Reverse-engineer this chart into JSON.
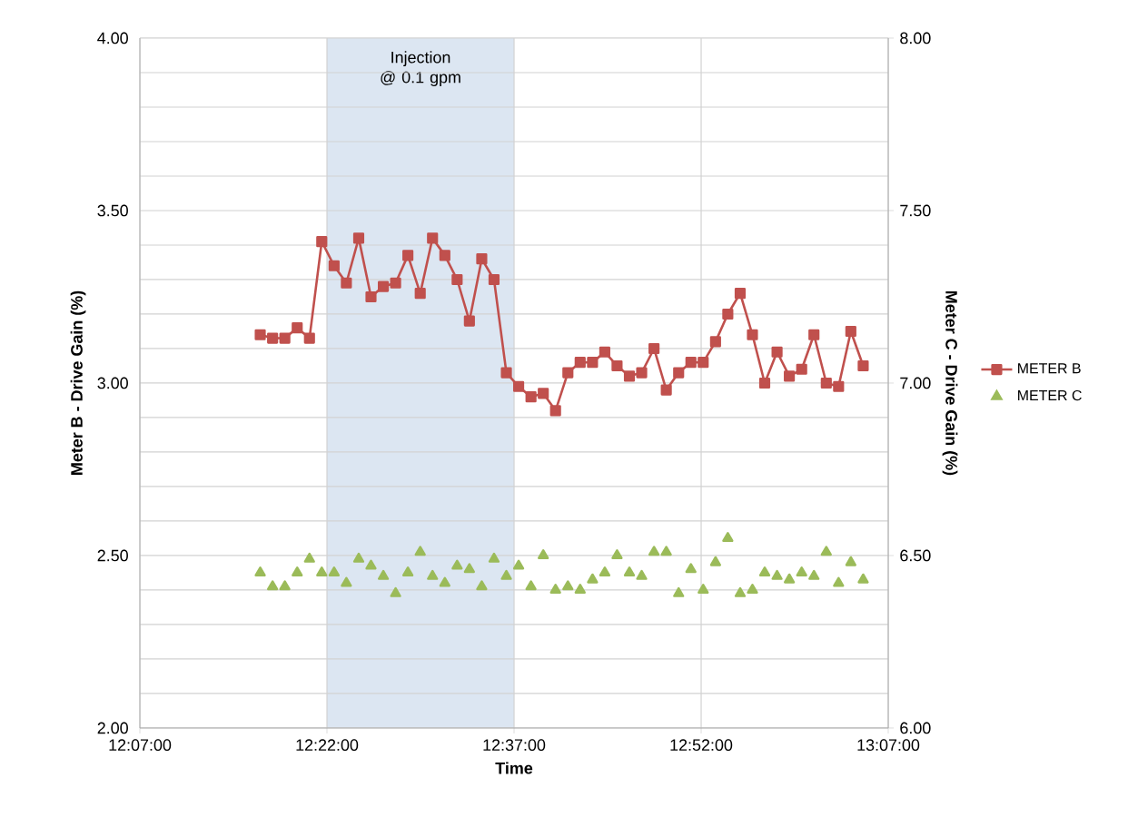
{
  "chart_data": {
    "type": "line",
    "xlabel": "Time",
    "ylabel": "Meter B - Drive Gain (%)",
    "y2label": "Meter C - Drive Gain (%)",
    "x": [
      12.2775,
      12.294,
      12.3104,
      12.3269,
      12.3433,
      12.3597,
      12.3762,
      12.3926,
      12.4091,
      12.4255,
      12.442,
      12.4584,
      12.4748,
      12.4913,
      12.5077,
      12.5242,
      12.5406,
      12.557,
      12.5735,
      12.5899,
      12.6064,
      12.6228,
      12.6393,
      12.6557,
      12.6721,
      12.6886,
      12.705,
      12.7215,
      12.7379,
      12.7543,
      12.7708,
      12.7872,
      12.8037,
      12.8201,
      12.8366,
      12.853,
      12.8694,
      12.8859,
      12.9023,
      12.9188,
      12.9352,
      12.9516,
      12.9681,
      12.9845,
      13.001,
      13.0174,
      13.0339,
      13.0503,
      13.0667,
      13.0832
    ],
    "xlim": [
      12.11667,
      13.11667
    ],
    "xticks": [
      {
        "value": 12.11667,
        "label": "12:07:00"
      },
      {
        "value": 12.36667,
        "label": "12:22:00"
      },
      {
        "value": 12.61667,
        "label": "12:37:00"
      },
      {
        "value": 12.86667,
        "label": "12:52:00"
      },
      {
        "value": 13.11667,
        "label": "13:07:00"
      }
    ],
    "ylim": [
      2,
      4
    ],
    "yticks": [
      {
        "value": 2.0,
        "label": "2.00"
      },
      {
        "value": 2.1,
        "label": null
      },
      {
        "value": 2.2,
        "label": null
      },
      {
        "value": 2.3,
        "label": null
      },
      {
        "value": 2.4,
        "label": null
      },
      {
        "value": 2.5,
        "label": "2.50"
      },
      {
        "value": 2.6,
        "label": null
      },
      {
        "value": 2.7,
        "label": null
      },
      {
        "value": 2.8,
        "label": null
      },
      {
        "value": 2.9,
        "label": null
      },
      {
        "value": 3.0,
        "label": "3.00"
      },
      {
        "value": 3.1,
        "label": null
      },
      {
        "value": 3.2,
        "label": null
      },
      {
        "value": 3.3,
        "label": null
      },
      {
        "value": 3.4,
        "label": null
      },
      {
        "value": 3.5,
        "label": "3.50"
      },
      {
        "value": 3.6,
        "label": null
      },
      {
        "value": 3.7,
        "label": null
      },
      {
        "value": 3.8,
        "label": null
      },
      {
        "value": 3.9,
        "label": null
      },
      {
        "value": 4.0,
        "label": "4.00"
      }
    ],
    "y2lim": [
      6,
      8
    ],
    "y2ticks": [
      {
        "value": 6.0,
        "label": "6.00"
      },
      {
        "value": 6.5,
        "label": "6.50"
      },
      {
        "value": 7.0,
        "label": "7.00"
      },
      {
        "value": 7.5,
        "label": "7.50"
      },
      {
        "value": 8.0,
        "label": "8.00"
      }
    ],
    "grid": true,
    "legend": "right",
    "series": [
      {
        "name": "METER B",
        "marker": "square",
        "color": "#c0504d",
        "values": [
          3.14,
          3.13,
          3.13,
          3.16,
          3.13,
          3.41,
          3.34,
          3.29,
          3.42,
          3.25,
          3.28,
          3.29,
          3.37,
          3.26,
          3.42,
          3.37,
          3.3,
          3.18,
          3.36,
          3.3,
          3.03,
          2.99,
          2.96,
          2.97,
          2.92,
          3.03,
          3.06,
          3.06,
          3.09,
          3.05,
          3.02,
          3.03,
          3.1,
          2.98,
          3.03,
          3.06,
          3.06,
          3.12,
          3.2,
          3.26,
          3.14,
          3.0,
          3.09,
          3.02,
          3.04,
          3.14,
          3.0,
          2.99,
          3.15,
          3.05
        ]
      },
      {
        "name": "METER C",
        "type": "scatter",
        "marker": "triangle",
        "axis": "y2",
        "color": "#9bbb59",
        "values": [
          6.45,
          6.41,
          6.41,
          6.45,
          6.49,
          6.45,
          6.45,
          6.42,
          6.49,
          6.47,
          6.44,
          6.39,
          6.45,
          6.51,
          6.44,
          6.42,
          6.47,
          6.46,
          6.41,
          6.49,
          6.44,
          6.47,
          6.41,
          6.5,
          6.4,
          6.41,
          6.4,
          6.43,
          6.45,
          6.5,
          6.45,
          6.44,
          6.51,
          6.51,
          6.39,
          6.46,
          6.4,
          6.48,
          6.55,
          6.39,
          6.4,
          6.45,
          6.44,
          6.43,
          6.45,
          6.44,
          6.51,
          6.42,
          6.48,
          6.43
        ]
      }
    ],
    "bands": [
      {
        "axis": "x",
        "from": 12.36667,
        "to": 12.61667,
        "label": "Injection @ 0.1 gpm",
        "color": "#dce6f2"
      }
    ]
  }
}
